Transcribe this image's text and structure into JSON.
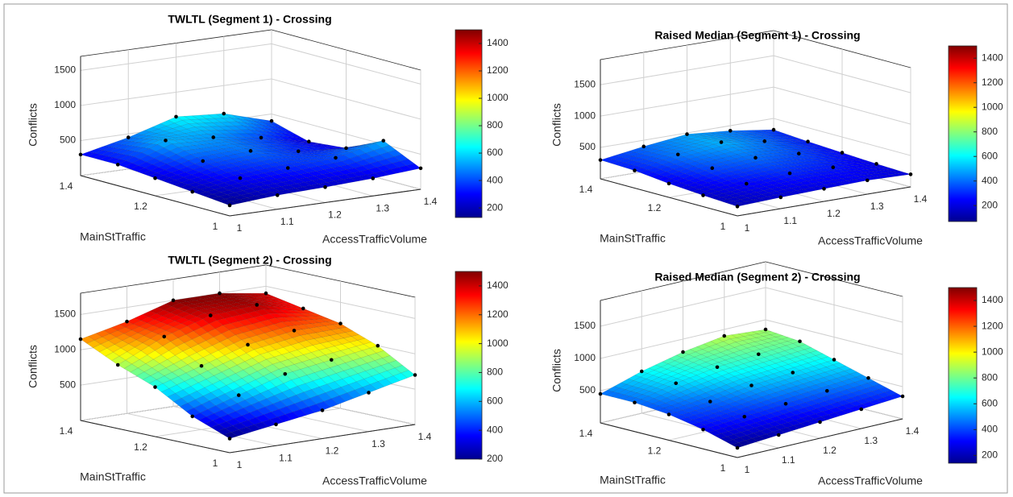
{
  "chart_data": [
    {
      "type": "surface",
      "title": "TWLTL (Segment 1) - Crossing",
      "xlabel": "AccessTrafficVolume",
      "ylabel": "MainStTraffic",
      "zlabel": "Conflicts",
      "x": [
        1,
        1.1,
        1.2,
        1.3,
        1.4
      ],
      "y": [
        1,
        1.1,
        1.2,
        1.3,
        1.4
      ],
      "z": [
        [
          150,
          200,
          220,
          250,
          300
        ],
        [
          200,
          300,
          350,
          400,
          550
        ],
        [
          250,
          400,
          450,
          350,
          300
        ],
        [
          300,
          550,
          500,
          400,
          250
        ],
        [
          300,
          450,
          650,
          600,
          400
        ]
      ],
      "xlim": [
        1,
        1.4
      ],
      "ylim": [
        1,
        1.4
      ],
      "zlim": [
        0,
        1700
      ],
      "xticks": [
        1,
        1.1,
        1.2,
        1.3,
        1.4
      ],
      "yticks": [
        1,
        1.2,
        1.4
      ],
      "zticks": [
        500,
        1000,
        1500
      ],
      "colormap": "jet",
      "clim": [
        130,
        1500
      ],
      "cticks": [
        200,
        400,
        600,
        800,
        1000,
        1200,
        1400
      ],
      "grid": true
    },
    {
      "type": "surface",
      "title": "Raised Median (Segment 1) - Crossing",
      "xlabel": "AccessTrafficVolume",
      "ylabel": "MainStTraffic",
      "zlabel": "Conflicts",
      "x": [
        1,
        1.1,
        1.2,
        1.3,
        1.4
      ],
      "y": [
        1,
        1.1,
        1.2,
        1.3,
        1.4
      ],
      "z": [
        [
          150,
          180,
          200,
          220,
          200
        ],
        [
          180,
          250,
          300,
          280,
          220
        ],
        [
          220,
          350,
          400,
          350,
          250
        ],
        [
          280,
          420,
          500,
          400,
          280
        ],
        [
          300,
          400,
          480,
          420,
          320
        ]
      ],
      "xlim": [
        1,
        1.4
      ],
      "ylim": [
        1,
        1.4
      ],
      "zlim": [
        0,
        1900
      ],
      "xticks": [
        1,
        1.1,
        1.2,
        1.3,
        1.4
      ],
      "yticks": [
        1,
        1.2,
        1.4
      ],
      "zticks": [
        500,
        1000,
        1500
      ],
      "colormap": "jet",
      "clim": [
        70,
        1500
      ],
      "cticks": [
        200,
        400,
        600,
        800,
        1000,
        1200,
        1400
      ],
      "grid": true
    },
    {
      "type": "surface",
      "title": "TWLTL (Segment 2) - Crossing",
      "xlabel": "AccessTrafficVolume",
      "ylabel": "MainStTraffic",
      "zlabel": "Conflicts",
      "x": [
        1,
        1.1,
        1.2,
        1.3,
        1.4
      ],
      "y": [
        1,
        1.1,
        1.2,
        1.3,
        1.4
      ],
      "z": [
        [
          200,
          300,
          400,
          550,
          700
        ],
        [
          400,
          600,
          800,
          900,
          1000
        ],
        [
          700,
          900,
          1100,
          1200,
          1200
        ],
        [
          900,
          1200,
          1400,
          1450,
          1300
        ],
        [
          1150,
          1300,
          1500,
          1500,
          1400
        ]
      ],
      "xlim": [
        1,
        1.4
      ],
      "ylim": [
        1,
        1.4
      ],
      "zlim": [
        0,
        1800
      ],
      "xticks": [
        1,
        1.1,
        1.2,
        1.3,
        1.4
      ],
      "yticks": [
        1,
        1.2,
        1.4
      ],
      "zticks": [
        500,
        1000,
        1500
      ],
      "colormap": "jet",
      "clim": [
        200,
        1500
      ],
      "cticks": [
        200,
        400,
        600,
        800,
        1000,
        1200,
        1400
      ],
      "grid": true
    },
    {
      "type": "surface",
      "title": "Raised Median (Segment 2) - Crossing",
      "xlabel": "AccessTrafficVolume",
      "ylabel": "MainStTraffic",
      "zlabel": "Conflicts",
      "x": [
        1,
        1.1,
        1.2,
        1.3,
        1.4
      ],
      "y": [
        1,
        1.1,
        1.2,
        1.3,
        1.4
      ],
      "z": [
        [
          150,
          200,
          250,
          300,
          350
        ],
        [
          300,
          350,
          400,
          450,
          500
        ],
        [
          400,
          450,
          550,
          600,
          650
        ],
        [
          450,
          600,
          700,
          750,
          800
        ],
        [
          450,
          650,
          800,
          900,
          850
        ]
      ],
      "xlim": [
        1,
        1.4
      ],
      "ylim": [
        1,
        1.4
      ],
      "zlim": [
        0,
        1900
      ],
      "xticks": [
        1,
        1.1,
        1.2,
        1.3,
        1.4
      ],
      "yticks": [
        1,
        1.2,
        1.4
      ],
      "zticks": [
        500,
        1000,
        1500
      ],
      "colormap": "jet",
      "clim": [
        140,
        1500
      ],
      "cticks": [
        200,
        400,
        600,
        800,
        1000,
        1200,
        1400
      ],
      "grid": true
    }
  ]
}
